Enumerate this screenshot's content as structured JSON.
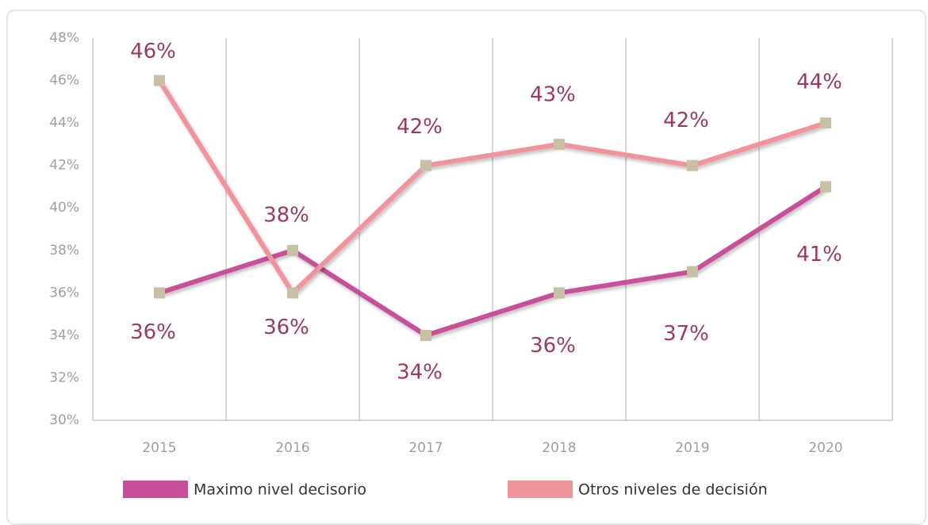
{
  "chart_data": {
    "type": "line",
    "categories": [
      "2015",
      "2016",
      "2017",
      "2018",
      "2019",
      "2020"
    ],
    "series": [
      {
        "name": "Maximo nivel decisorio",
        "color": "#c8509a",
        "values": [
          36,
          38,
          34,
          36,
          37,
          41
        ],
        "value_labels": [
          "36%",
          "38%",
          "34%",
          "36%",
          "37%",
          "41%"
        ]
      },
      {
        "name": "Otros niveles de decisión",
        "color": "#f0939c",
        "values": [
          46,
          36,
          42,
          43,
          42,
          44
        ],
        "value_labels": [
          "46%",
          "36%",
          "42%",
          "43%",
          "42%",
          "44%"
        ]
      }
    ],
    "marker_color": "#c8c0a4",
    "ylim": [
      30,
      48
    ],
    "yticks": [
      {
        "value": 30,
        "label": "30%"
      },
      {
        "value": 32,
        "label": "32%"
      },
      {
        "value": 34,
        "label": "34%"
      },
      {
        "value": 36,
        "label": "36%"
      },
      {
        "value": 38,
        "label": "38%"
      },
      {
        "value": 40,
        "label": "40%"
      },
      {
        "value": 42,
        "label": "42%"
      },
      {
        "value": 44,
        "label": "44%"
      },
      {
        "value": 46,
        "label": "46%"
      },
      {
        "value": 48,
        "label": "48%"
      }
    ],
    "grid": true,
    "legend": "bottom"
  }
}
